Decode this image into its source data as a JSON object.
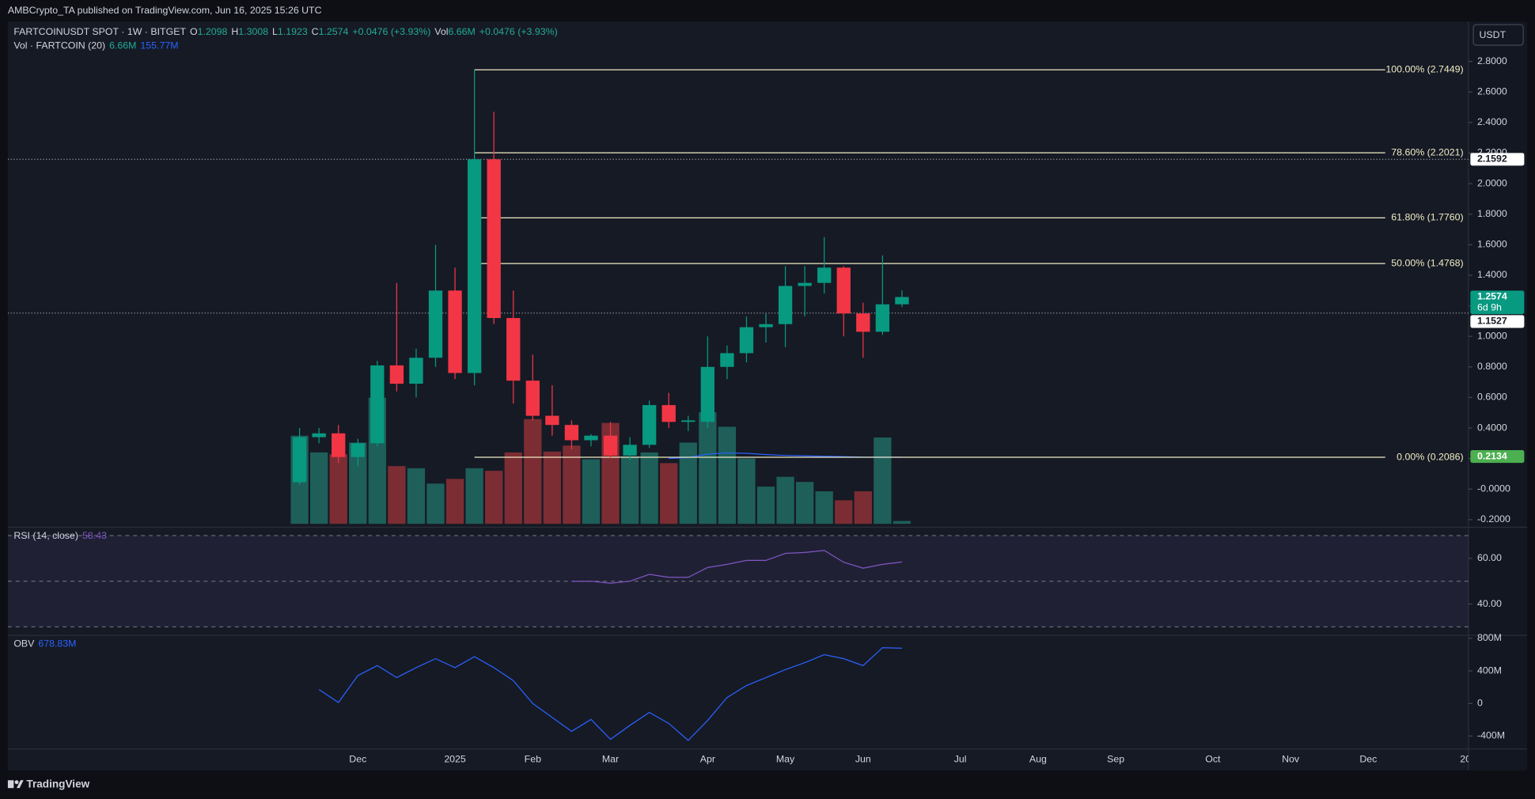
{
  "header": {
    "published": "AMBCrypto_TA published on TradingView.com, Jun 16, 2025 15:26 UTC",
    "symbol": "FARTCOINUSDT SPOT · 1W · BITGET",
    "ohlc": [
      {
        "key": "O",
        "value": "1.2098"
      },
      {
        "key": "H",
        "value": "1.3008"
      },
      {
        "key": "L",
        "value": "1.1923"
      },
      {
        "key": "C",
        "value": "1.2574"
      }
    ],
    "change": "+0.0476 (+3.93%)",
    "vol_key": "Vol",
    "vol_value": "6.66M",
    "vol_change": "+0.0476 (+3.93%)",
    "indicator": "Vol · FARTCOIN (20)",
    "indicator_values": [
      "6.66M",
      "155.77M"
    ]
  },
  "currency": "USDT",
  "brand": "TradingView",
  "chart_data": [
    {
      "type": "candlestick",
      "categories": [
        null,
        null,
        null,
        "Dec",
        null,
        null,
        null,
        null,
        "2025",
        null,
        null,
        null,
        "Feb",
        null,
        null,
        null,
        "Mar",
        null,
        null,
        null,
        null,
        "Apr",
        null,
        null,
        null,
        "May",
        null,
        null,
        null,
        "Jun",
        null,
        null,
        null,
        null,
        "Jul",
        null,
        null,
        null,
        "Aug",
        null,
        null,
        null,
        "Sep",
        null,
        null,
        null,
        null,
        "Oct",
        null,
        null,
        null,
        "Nov",
        null,
        null,
        null,
        "Dec",
        null,
        null,
        null,
        null,
        "20"
      ],
      "open": [
        0.045,
        0.34,
        0.365,
        0.21,
        0.3,
        0.81,
        0.69,
        0.86,
        1.3,
        0.76,
        2.1592,
        1.12,
        0.71,
        0.48,
        0.42,
        0.32,
        0.35,
        0.22,
        0.29,
        0.55,
        0.44,
        0.44,
        0.8,
        0.89,
        1.06,
        1.08,
        1.33,
        1.35,
        1.45,
        1.15,
        1.03,
        1.2098,
        null,
        null,
        null,
        null,
        null,
        null,
        null,
        null,
        null,
        null,
        null,
        null,
        null,
        null,
        null,
        null,
        null,
        null,
        null,
        null,
        null,
        null,
        null,
        null,
        null,
        null,
        null,
        null,
        null
      ],
      "high": [
        0.4,
        0.4,
        0.42,
        0.33,
        0.84,
        1.35,
        0.92,
        1.6,
        1.45,
        2.7449,
        2.47,
        1.3,
        0.88,
        0.68,
        0.45,
        0.36,
        0.44,
        0.34,
        0.58,
        0.63,
        0.48,
        1.0,
        0.94,
        1.13,
        1.15,
        1.46,
        1.46,
        1.65,
        1.46,
        1.22,
        1.53,
        1.3008,
        null,
        null,
        null,
        null,
        null,
        null,
        null,
        null,
        null,
        null,
        null,
        null,
        null,
        null,
        null,
        null,
        null,
        null,
        null,
        null,
        null,
        null,
        null,
        null,
        null,
        null,
        null,
        null,
        null
      ],
      "low": [
        0.03,
        0.3,
        0.17,
        0.15,
        0.28,
        0.64,
        0.6,
        0.8,
        0.72,
        0.68,
        1.08,
        0.56,
        0.45,
        0.35,
        0.26,
        0.28,
        0.2,
        0.19,
        0.27,
        0.4,
        0.38,
        0.4,
        0.72,
        0.83,
        0.96,
        0.93,
        1.13,
        1.28,
        1.0,
        0.86,
        1.01,
        1.1923,
        null,
        null,
        null,
        null,
        null,
        null,
        null,
        null,
        null,
        null,
        null,
        null,
        null,
        null,
        null,
        null,
        null,
        null,
        null,
        null,
        null,
        null,
        null,
        null,
        null,
        null,
        null,
        null,
        null
      ],
      "close": [
        0.34,
        0.365,
        0.21,
        0.3,
        0.81,
        0.69,
        0.86,
        1.3,
        0.76,
        2.1592,
        1.12,
        0.71,
        0.48,
        0.42,
        0.32,
        0.35,
        0.22,
        0.29,
        0.55,
        0.44,
        0.45,
        0.8,
        0.89,
        1.06,
        1.08,
        1.33,
        1.35,
        1.45,
        1.15,
        1.03,
        1.2098,
        1.2574,
        null,
        null,
        null,
        null,
        null,
        null,
        null,
        null,
        null,
        null,
        null,
        null,
        null,
        null,
        null,
        null,
        null,
        null,
        null,
        null,
        null,
        null,
        null,
        null,
        null,
        null,
        null,
        null,
        null
      ],
      "up_color": "#089981",
      "down_color": "#f23645",
      "ylim": [
        -0.24,
        3.06
      ],
      "yticks": [
        {
          "value": 2.8,
          "label": "2.8000"
        },
        {
          "value": 2.6,
          "label": "2.6000"
        },
        {
          "value": 2.4,
          "label": "2.4000"
        },
        {
          "value": 2.2,
          "label": "2.2000"
        },
        {
          "value": 2.0,
          "label": "2.0000"
        },
        {
          "value": 1.8,
          "label": "1.8000"
        },
        {
          "value": 1.6,
          "label": "1.6000"
        },
        {
          "value": 1.4,
          "label": "1.4000"
        },
        {
          "value": 1.2,
          "label": "1.2000"
        },
        {
          "value": 1.0,
          "label": "1.0000"
        },
        {
          "value": 0.8,
          "label": "0.8000"
        },
        {
          "value": 0.6,
          "label": "0.6000"
        },
        {
          "value": 0.4,
          "label": "0.4000"
        },
        {
          "value": 0.2,
          "label": "0.2000"
        },
        {
          "value": 0,
          "label": "-0.0000"
        },
        {
          "value": -0.2,
          "label": "-0.2000"
        }
      ],
      "fib": [
        {
          "value": 2.7449,
          "label": "100.00% (2.7449)"
        },
        {
          "value": 2.2021,
          "label": "78.60% (2.2021)"
        },
        {
          "value": 1.776,
          "label": "61.80% (1.7760)"
        },
        {
          "value": 1.4768,
          "label": "50.00% (1.4768)"
        },
        {
          "value": 0.2086,
          "label": "0.00% (0.2086)"
        }
      ],
      "fib_color": "#f0ecc4",
      "price_tags": [
        {
          "value": 2.1592,
          "color": "#ffffff",
          "line": true
        },
        {
          "value": 1.2574,
          "color": "#089981",
          "countdown": "6d 9h"
        },
        {
          "value": 1.1527,
          "color": "#ffffff",
          "line": true
        },
        {
          "value": 0.2134,
          "color": "#4caf50"
        }
      ]
    },
    {
      "type": "bar",
      "values": [
        206,
        167,
        163,
        190,
        295,
        135,
        130,
        94,
        105,
        130,
        124,
        167,
        245,
        169,
        183,
        151,
        236,
        158,
        167,
        142,
        190,
        261,
        227,
        153,
        87,
        110,
        98,
        76,
        55,
        76,
        202,
        6.66,
        null,
        null,
        null,
        null,
        null,
        null,
        null,
        null,
        null,
        null,
        null,
        null,
        null,
        null,
        null,
        null,
        null,
        null,
        null,
        null,
        null,
        null,
        null,
        null,
        null,
        null,
        null,
        null,
        null
      ],
      "up_color": "#1e5f5a",
      "down_color": "#7c2d33",
      "ma": {
        "color": "#2962ff",
        "values": [
          null,
          null,
          null,
          null,
          null,
          null,
          null,
          null,
          null,
          null,
          null,
          null,
          null,
          null,
          null,
          null,
          null,
          null,
          null,
          153,
          155,
          163,
          166,
          165,
          162,
          160,
          159,
          158,
          157,
          156,
          156,
          155.77,
          null,
          null,
          null,
          null,
          null,
          null,
          null,
          null,
          null,
          null,
          null,
          null,
          null,
          null,
          null,
          null,
          null,
          null,
          null,
          null,
          null,
          null,
          null,
          null,
          null,
          null,
          null,
          null,
          null
        ]
      }
    },
    {
      "type": "line",
      "title": "RSI (14, close)",
      "legend_value": "58.43",
      "color": "#7e57c2",
      "values": [
        null,
        null,
        null,
        null,
        null,
        null,
        null,
        null,
        null,
        null,
        null,
        null,
        null,
        null,
        50.0,
        50.0,
        49.1,
        50.0,
        53.0,
        51.7,
        51.7,
        56.0,
        57.4,
        59.1,
        59.1,
        62.2,
        62.6,
        63.5,
        58.3,
        55.7,
        57.4,
        58.43,
        null,
        null,
        null,
        null,
        null,
        null,
        null,
        null,
        null,
        null,
        null,
        null,
        null,
        null,
        null,
        null,
        null,
        null,
        null,
        null,
        null,
        null,
        null,
        null,
        null,
        null,
        null,
        null,
        null
      ],
      "ylim": [
        26.7,
        73
      ],
      "yticks": [
        {
          "value": 60,
          "label": "60.00"
        },
        {
          "value": 40,
          "label": "40.00"
        }
      ],
      "levels": [
        70,
        50,
        30
      ]
    },
    {
      "type": "line",
      "title": "OBV",
      "legend_value": "678.83M",
      "color": "#2962ff",
      "values": [
        null,
        171,
        12,
        342,
        465,
        318,
        440,
        550,
        440,
        575,
        440,
        281,
        0,
        -171,
        -342,
        -196,
        -440,
        -269,
        -110,
        -245,
        -453,
        -208,
        73,
        220,
        318,
        416,
        501,
        599,
        550,
        465,
        685,
        678.83,
        null,
        null,
        null,
        null,
        null,
        null,
        null,
        null,
        null,
        null,
        null,
        null,
        null,
        null,
        null,
        null,
        null,
        null,
        null,
        null,
        null,
        null,
        null,
        null,
        null,
        null,
        null,
        null,
        null
      ],
      "ylim": [
        -558,
        824
      ],
      "yticks": [
        {
          "value": 800,
          "label": "800M"
        },
        {
          "value": 400,
          "label": "400M"
        },
        0,
        {
          "value": -400,
          "label": "-400M"
        }
      ]
    }
  ]
}
